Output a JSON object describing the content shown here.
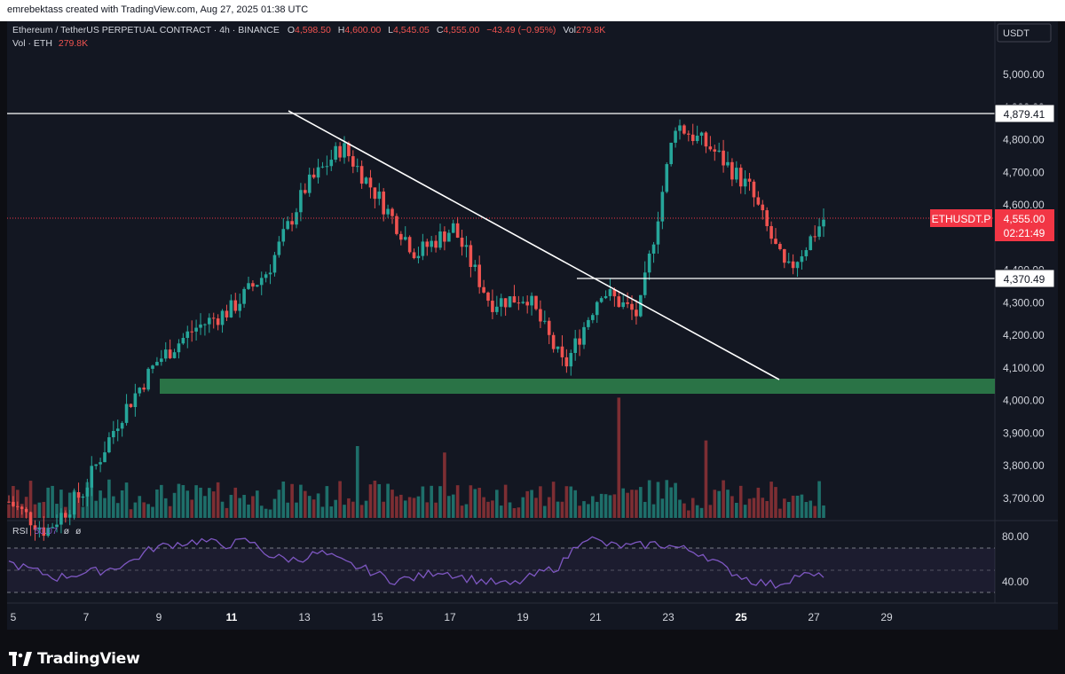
{
  "header": {
    "attribution": "emrebektass created with TradingView.com, Aug 27, 2025 01:38 UTC"
  },
  "legend": {
    "symbol": "Ethereum / TetherUS PERPETUAL CONTRACT · 4h · BINANCE",
    "o_label": "O",
    "o_value": "4,598.50",
    "h_label": "H",
    "h_value": "4,600.00",
    "l_label": "L",
    "l_value": "4,545.05",
    "c_label": "C",
    "c_value": "4,555.00",
    "change": "−43.49 (−0.95%)",
    "vol_label": "Vol",
    "vol_value": "279.8K",
    "vol_line_label": "Vol · ETH",
    "vol_line_value": "279.8K"
  },
  "currency_button": "USDT",
  "price_axis": {
    "ticks": [
      "5,000.00",
      "4,900.00",
      "4,800.00",
      "4,700.00",
      "4,600.00",
      "4,400.00",
      "4,300.00",
      "4,200.00",
      "4,100.00",
      "4,000.00",
      "3,900.00",
      "3,800.00",
      "3,700.00"
    ],
    "level_high": "4,879.41",
    "level_low": "4,370.49",
    "symbol_tag": "ETHUSDT.P",
    "last_price": "4,555.00",
    "countdown": "02:21:49"
  },
  "rsi": {
    "label": "RSI",
    "value": "50.07",
    "extra1": "ø",
    "extra2": "ø",
    "axis_ticks": [
      "80.00",
      "40.00"
    ]
  },
  "time_axis": {
    "labels": [
      "5",
      "7",
      "9",
      "11",
      "13",
      "15",
      "17",
      "19",
      "21",
      "23",
      "25",
      "27",
      "29"
    ],
    "bold": [
      "11",
      "25"
    ]
  },
  "brand": "TradingView",
  "colors": {
    "up": "#26a69a",
    "down": "#ef5350",
    "vol_up": "#1e6f6a",
    "vol_down": "#7d2e33",
    "zone": "#2e7d4a",
    "rsi_line": "#7e57c2",
    "tag_red": "#f23645"
  },
  "chart_data": [
    {
      "type": "candlestick",
      "timeframe": "4h",
      "x_axis_dates": [
        "5",
        "7",
        "9",
        "11",
        "13",
        "15",
        "17",
        "19",
        "21",
        "23",
        "25",
        "27",
        "29"
      ],
      "ylim": [
        3620,
        5060
      ],
      "drawn_close_path": [
        [
          "Aug 5",
          3690
        ],
        [
          "Aug 6",
          3600
        ],
        [
          "Aug 7",
          3720
        ],
        [
          "Aug 8",
          3950
        ],
        [
          "Aug 9",
          4120
        ],
        [
          "Aug 10",
          4220
        ],
        [
          "Aug 11",
          4280
        ],
        [
          "Aug 12",
          4400
        ],
        [
          "Aug 13",
          4650
        ],
        [
          "Aug 14",
          4780
        ],
        [
          "Aug 15",
          4620
        ],
        [
          "Aug 16",
          4450
        ],
        [
          "Aug 17",
          4530
        ],
        [
          "Aug 18",
          4300
        ],
        [
          "Aug 19",
          4320
        ],
        [
          "Aug 20",
          4100
        ],
        [
          "Aug 21",
          4340
        ],
        [
          "Aug 22",
          4260
        ],
        [
          "Aug 23",
          4850
        ],
        [
          "Aug 24",
          4770
        ],
        [
          "Aug 25",
          4650
        ],
        [
          "Aug 26",
          4390
        ],
        [
          "Aug 27",
          4555
        ]
      ],
      "last_price": 4555.0,
      "horizontal_levels": [
        4879.41,
        4370.49
      ],
      "support_zone": [
        4010,
        4060
      ],
      "trendline": [
        [
          "Aug 12",
          4870
        ],
        [
          "Aug 26",
          4060
        ]
      ],
      "volume_unit": "ETH",
      "last_volume": "279.8K"
    },
    {
      "type": "line",
      "name": "RSI",
      "ylim": [
        30,
        90
      ],
      "bands": [
        70,
        40
      ],
      "last_value": 50.07,
      "drawn_values": [
        60,
        55,
        50,
        53,
        55,
        60,
        70,
        73,
        75,
        72,
        75,
        64,
        62,
        67,
        60,
        55,
        48,
        50,
        55,
        50,
        47,
        45,
        52,
        58,
        78,
        72,
        71,
        73,
        70,
        66,
        55,
        48,
        45,
        52,
        50
      ]
    }
  ]
}
